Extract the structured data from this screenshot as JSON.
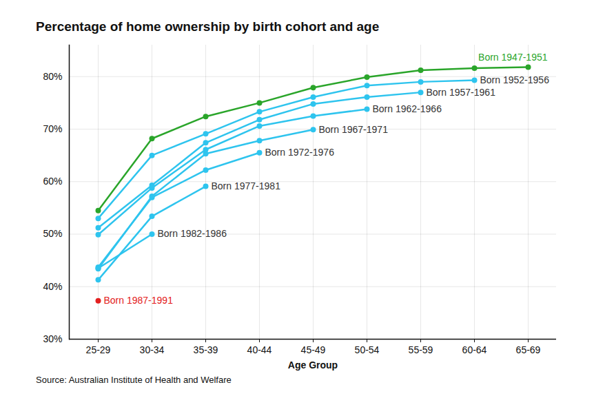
{
  "chart_data": {
    "type": "line",
    "title": "Percentage of home ownership by birth cohort and age",
    "x_label": "Age Group",
    "caption": "Source: Australian Institute of Health and Welfare",
    "categories": [
      "25-29",
      "30-34",
      "35-39",
      "40-44",
      "45-49",
      "50-54",
      "55-59",
      "60-64",
      "65-69"
    ],
    "series": [
      {
        "name": "Born 1947-1951",
        "color": "#2aa52a",
        "values": [
          54.5,
          68.2,
          72.4,
          75.0,
          77.9,
          79.9,
          81.2,
          81.6,
          81.8
        ]
      },
      {
        "name": "Born 1952-1956",
        "color": "#2ec4ee",
        "values": [
          53.0,
          65.0,
          69.1,
          73.3,
          76.1,
          78.3,
          79.0,
          79.3,
          null
        ]
      },
      {
        "name": "Born 1957-1961",
        "color": "#2ec4ee",
        "values": [
          51.2,
          59.3,
          67.4,
          71.8,
          74.8,
          76.1,
          77.0,
          null,
          null
        ]
      },
      {
        "name": "Born 1962-1966",
        "color": "#2ec4ee",
        "values": [
          49.9,
          58.8,
          66.1,
          70.6,
          72.5,
          73.8,
          null,
          null,
          null
        ]
      },
      {
        "name": "Born 1967-1971",
        "color": "#2ec4ee",
        "values": [
          43.4,
          57.2,
          65.3,
          67.8,
          69.9,
          null,
          null,
          null,
          null
        ]
      },
      {
        "name": "Born 1972-1976",
        "color": "#2ec4ee",
        "values": [
          43.7,
          57.0,
          62.2,
          65.5,
          null,
          null,
          null,
          null,
          null
        ]
      },
      {
        "name": "Born 1977-1981",
        "color": "#2ec4ee",
        "values": [
          41.3,
          53.4,
          59.1,
          null,
          null,
          null,
          null,
          null,
          null
        ]
      },
      {
        "name": "Born 1982-1986",
        "color": "#2ec4ee",
        "values": [
          43.5,
          50.0,
          null,
          null,
          null,
          null,
          null,
          null,
          null
        ]
      },
      {
        "name": "Born 1987-1991",
        "color": "#e32020",
        "values": [
          37.3,
          null,
          null,
          null,
          null,
          null,
          null,
          null,
          null
        ]
      }
    ],
    "ylim": [
      30,
      86
    ],
    "yticks": [
      {
        "value": 30,
        "label": "30%"
      },
      {
        "value": 40,
        "label": "40%"
      },
      {
        "value": 50,
        "label": "50%"
      },
      {
        "value": 60,
        "label": "60%"
      },
      {
        "value": 70,
        "label": "70%"
      },
      {
        "value": 80,
        "label": "80%"
      }
    ],
    "grid": true,
    "marker": "circle"
  }
}
